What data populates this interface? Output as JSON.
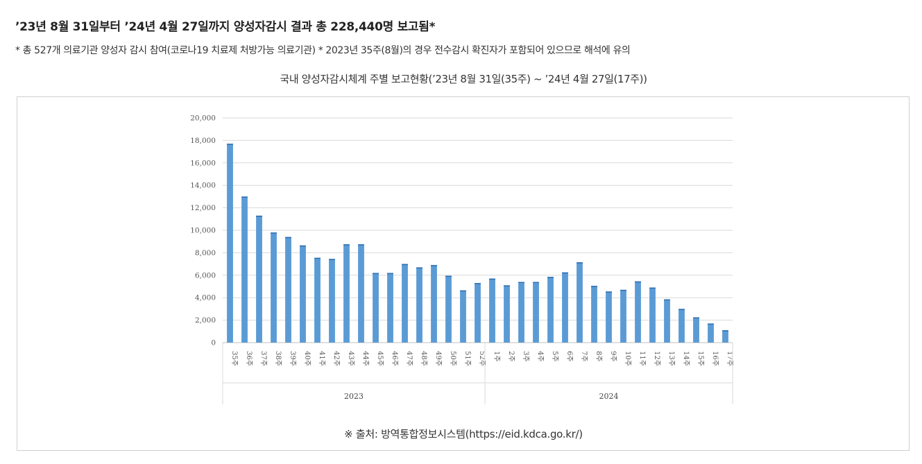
{
  "headline": "’23년 8월 31일부터 ’24년 4월 27일까지 양성자감시 결과 총 228,440명 보고됨*",
  "note": "* 총 527개 의료기관 양성자 감시 참여(코로나19 치료제 처방가능 의료기관) * 2023년 35주(8월)의 경우 전수감시 확진자가 포함되어 있으므로 해석에 유의",
  "source": "※ 출처: 방역통합정보시스템(https://eid.kdca.go.kr/)",
  "colors": {
    "bar": "#5b9bd5",
    "grid": "#d9d9d9",
    "axis": "#bfbfbf"
  },
  "chart_data": {
    "type": "bar",
    "title": "국내 양성자감시체계 주별 보고현황(’23년 8월 31일(35주) ~ ’24년 4월 27일(17주))",
    "xlabel": "",
    "ylabel": "",
    "ylim": [
      0,
      20000
    ],
    "yticks": [
      "0",
      "2,000",
      "4,000",
      "6,000",
      "8,000",
      "10,000",
      "12,000",
      "14,000",
      "16,000",
      "18,000",
      "20,000"
    ],
    "grid": true,
    "legend": "none",
    "categories": [
      "35주",
      "36주",
      "37주",
      "38주",
      "39주",
      "40주",
      "41주",
      "42주",
      "43주",
      "44주",
      "45주",
      "46주",
      "47주",
      "48주",
      "49주",
      "50주",
      "51주",
      "52주",
      "1주",
      "2주",
      "3주",
      "4주",
      "5주",
      "6주",
      "7주",
      "8주",
      "9주",
      "10주",
      "11주",
      "12주",
      "13주",
      "14주",
      "15주",
      "16주",
      "17주"
    ],
    "groups": [
      {
        "label": "2023",
        "count": 18
      },
      {
        "label": "2024",
        "count": 17
      }
    ],
    "values": [
      17700,
      13000,
      11300,
      9800,
      9400,
      8650,
      7550,
      7450,
      8750,
      8750,
      6200,
      6200,
      7000,
      6700,
      6900,
      5950,
      4650,
      5300,
      5700,
      5100,
      5400,
      5400,
      5850,
      6250,
      7150,
      5050,
      4550,
      4700,
      5450,
      4900,
      3850,
      3000,
      2250,
      1700,
      1100
    ]
  }
}
